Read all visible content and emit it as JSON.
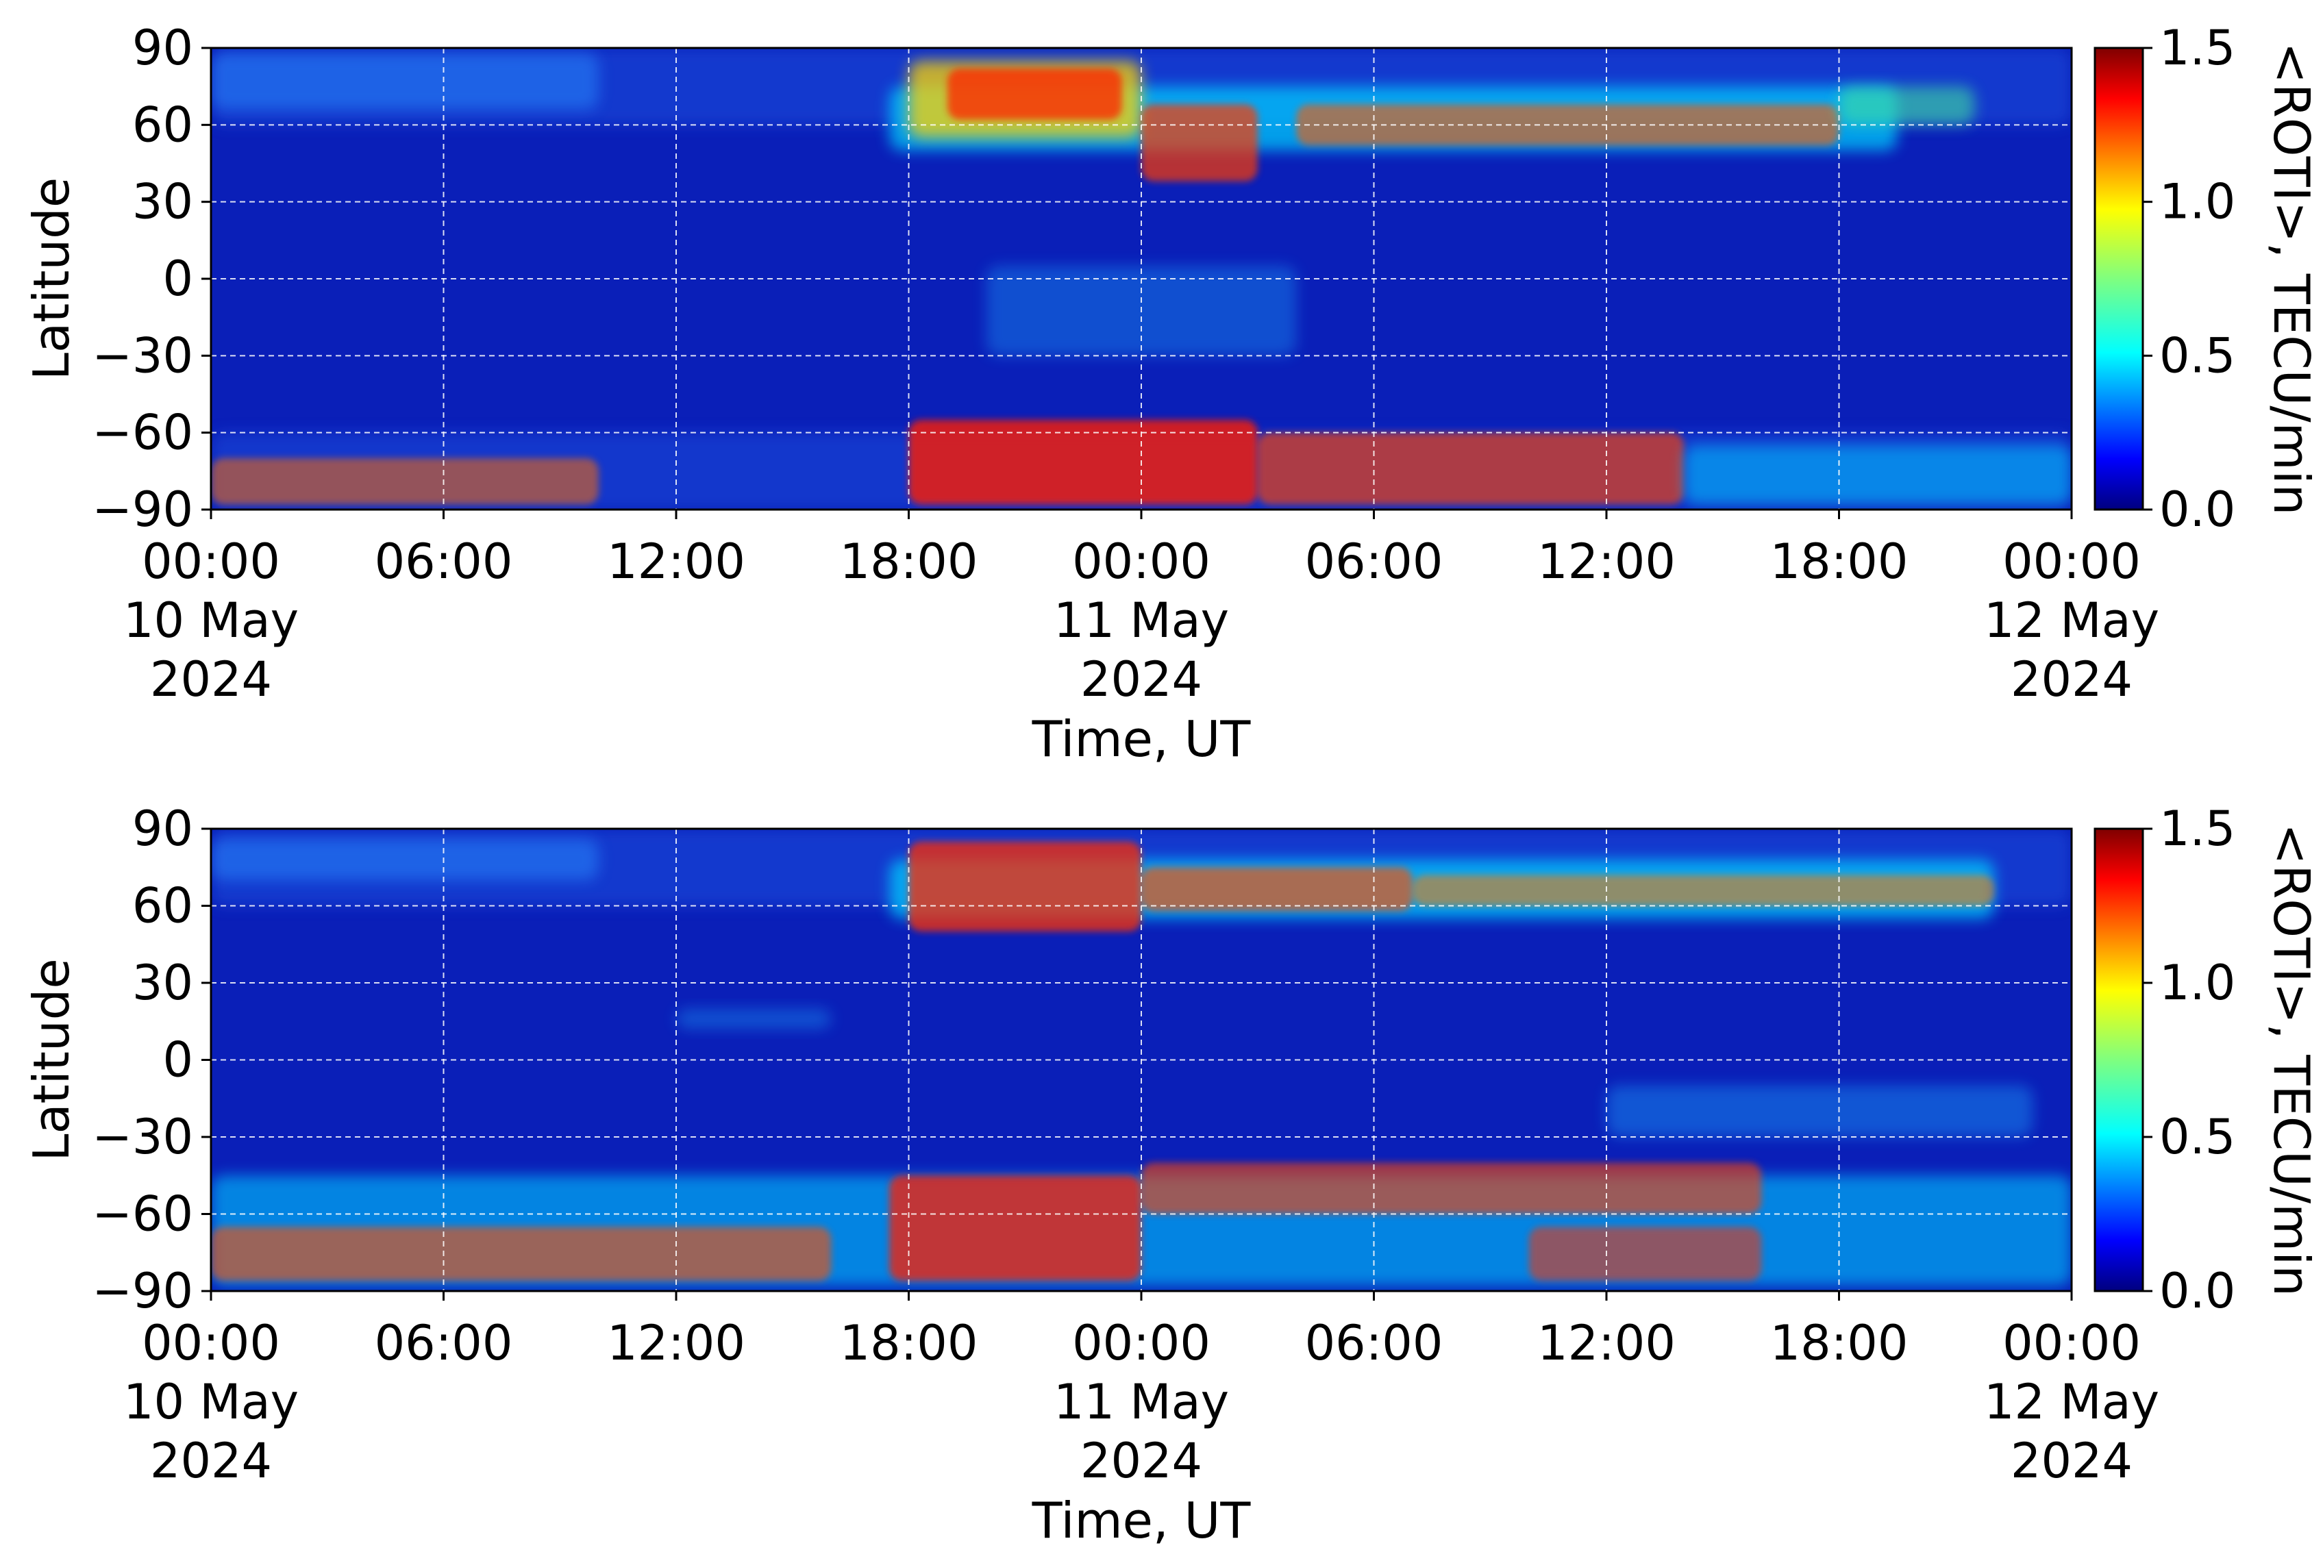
{
  "chart_data": [
    {
      "type": "heatmap",
      "title": "",
      "xlabel": "Time, UT",
      "ylabel": "Latitude",
      "x_tick_labels": [
        [
          "00:00",
          "10 May",
          "2024"
        ],
        [
          "06:00"
        ],
        [
          "12:00"
        ],
        [
          "18:00"
        ],
        [
          "00:00",
          "11 May",
          "2024"
        ],
        [
          "06:00"
        ],
        [
          "12:00"
        ],
        [
          "18:00"
        ],
        [
          "00:00",
          "12 May",
          "2024"
        ]
      ],
      "x_hours": [
        0,
        6,
        12,
        18,
        24,
        30,
        36,
        42,
        48
      ],
      "xlim": [
        0,
        48
      ],
      "y_ticks": [
        90,
        60,
        30,
        0,
        -30,
        -60,
        -90
      ],
      "y_tick_labels": [
        "90",
        "60",
        "30",
        "0",
        "−30",
        "−60",
        "−90"
      ],
      "ylim": [
        -90,
        90
      ],
      "colorbar": {
        "label": "<ROTI>, TECU/min",
        "ticks": [
          0.0,
          0.5,
          1.0,
          1.5
        ],
        "tick_labels": [
          "0.0",
          "0.5",
          "1.0",
          "1.5"
        ],
        "range": [
          0,
          1.5
        ],
        "colormap": "jet"
      },
      "grid": true,
      "features": [
        {
          "description": "northern auroral oval enhancement",
          "time_start_h": 17.5,
          "time_end_h": 43.5,
          "lat_range": [
            40,
            85
          ],
          "peak_roti": 1.5
        },
        {
          "description": "southern auroral oval enhancement",
          "time_start_h": 17.5,
          "time_end_h": 36,
          "lat_range": [
            -85,
            -55
          ],
          "peak_roti": 1.5
        }
      ]
    },
    {
      "type": "heatmap",
      "title": "",
      "xlabel": "Time, UT",
      "ylabel": "Latitude",
      "x_tick_labels": [
        [
          "00:00",
          "10 May",
          "2024"
        ],
        [
          "06:00"
        ],
        [
          "12:00"
        ],
        [
          "18:00"
        ],
        [
          "00:00",
          "11 May",
          "2024"
        ],
        [
          "06:00"
        ],
        [
          "12:00"
        ],
        [
          "18:00"
        ],
        [
          "00:00",
          "12 May",
          "2024"
        ]
      ],
      "x_hours": [
        0,
        6,
        12,
        18,
        24,
        30,
        36,
        42,
        48
      ],
      "xlim": [
        0,
        48
      ],
      "y_ticks": [
        90,
        60,
        30,
        0,
        -30,
        -60,
        -90
      ],
      "y_tick_labels": [
        "90",
        "60",
        "30",
        "0",
        "−30",
        "−60",
        "−90"
      ],
      "ylim": [
        -90,
        90
      ],
      "colorbar": {
        "label": "<ROTI>, TECU/min",
        "ticks": [
          0.0,
          0.5,
          1.0,
          1.5
        ],
        "tick_labels": [
          "0.0",
          "0.5",
          "1.0",
          "1.5"
        ],
        "range": [
          0,
          1.5
        ],
        "colormap": "jet"
      },
      "grid": true,
      "features": [
        {
          "description": "northern auroral oval enhancement",
          "time_start_h": 17.5,
          "time_end_h": 46,
          "lat_range": [
            50,
            85
          ],
          "peak_roti": 1.5
        },
        {
          "description": "southern high-latitude enhancement",
          "time_start_h": 0,
          "time_end_h": 48,
          "lat_range": [
            -85,
            -40
          ],
          "peak_roti": 1.5
        }
      ]
    }
  ],
  "colors": {
    "background_field": "#0a1fb8",
    "axes": "#000000",
    "grid": "#ffffff"
  }
}
